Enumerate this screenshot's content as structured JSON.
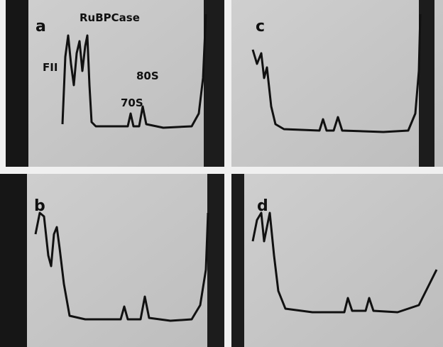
{
  "panels": [
    {
      "label": "a",
      "annotations": [
        "RuBPCase",
        "FII",
        "80S",
        "70S"
      ]
    },
    {
      "label": "c"
    },
    {
      "label": "b"
    },
    {
      "label": "d"
    }
  ]
}
